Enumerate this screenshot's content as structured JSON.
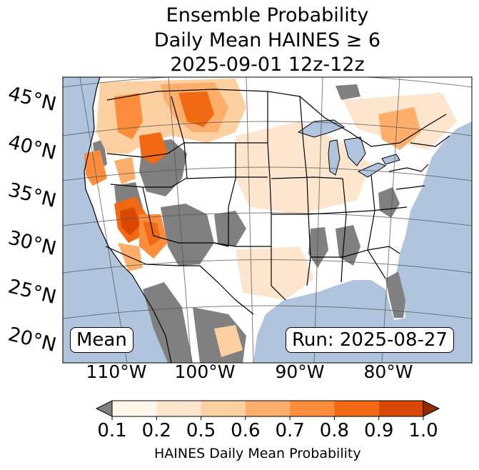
{
  "title": {
    "line1": "Ensemble Probability",
    "line2": "Daily Mean HAINES ≥ 6",
    "line3": "2025-09-01 12z-12z"
  },
  "map_labels": {
    "lat": [
      "45°N",
      "40°N",
      "35°N",
      "30°N",
      "25°N",
      "20°N"
    ],
    "lon": [
      "110°W",
      "100°W",
      "90°W",
      "80°W"
    ],
    "statistic_box": "Mean",
    "run_box": "Run: 2025-08-27"
  },
  "colorbar": {
    "label": "HAINES Daily Mean Probability",
    "ticks": [
      "0.1",
      "0.2",
      "0.5",
      "0.6",
      "0.7",
      "0.8",
      "0.9",
      "1.0"
    ],
    "under_color": "#808080",
    "bin_colors": [
      "#fff5eb",
      "#fee6ce",
      "#fdd0a2",
      "#fdae6b",
      "#fd8d3c",
      "#f16913",
      "#d94801"
    ],
    "over_color": "#8c2d04"
  },
  "colors": {
    "ocean": "#b0c4de",
    "land": "#ffffff",
    "no_data": "#808080",
    "lake": "#b0c4de"
  }
}
